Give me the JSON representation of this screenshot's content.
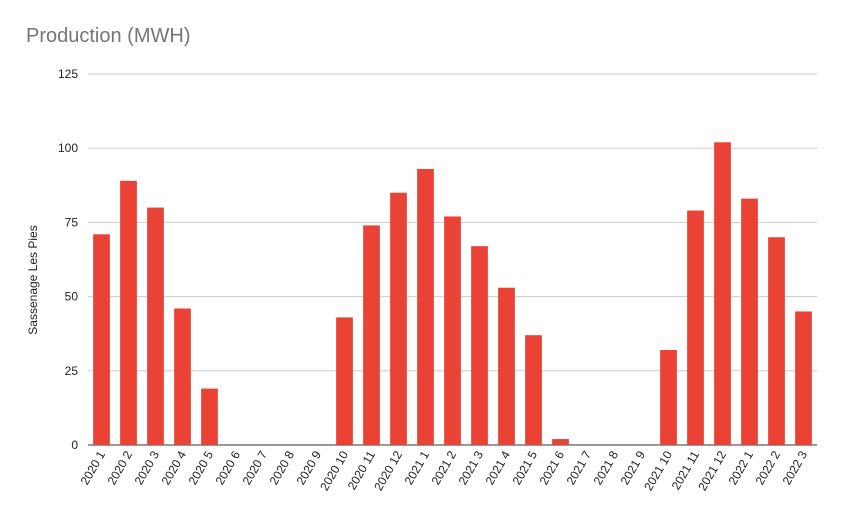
{
  "chart_data": {
    "type": "bar",
    "title": "Production (MWH)",
    "xlabel": "",
    "ylabel": "Sassenage Les Pies",
    "ylim": [
      0,
      125
    ],
    "yticks": [
      0,
      25,
      50,
      75,
      100,
      125
    ],
    "grid": true,
    "legend": "none",
    "bar_color": "#ea4335",
    "categories": [
      "2020 1",
      "2020 2",
      "2020 3",
      "2020 4",
      "2020 5",
      "2020 6",
      "2020 7",
      "2020 8",
      "2020 9",
      "2020 10",
      "2020 11",
      "2020 12",
      "2021 1",
      "2021 2",
      "2021 3",
      "2021 4",
      "2021 5",
      "2021 6",
      "2021 7",
      "2021 8",
      "2021 9",
      "2021 10",
      "2021 11",
      "2021 12",
      "2022 1",
      "2022 2",
      "2022 3"
    ],
    "values": [
      71,
      89,
      80,
      46,
      19,
      0,
      0,
      0,
      0,
      43,
      74,
      85,
      93,
      77,
      67,
      53,
      37,
      2,
      0,
      0,
      0,
      32,
      79,
      102,
      83,
      70,
      45
    ]
  }
}
